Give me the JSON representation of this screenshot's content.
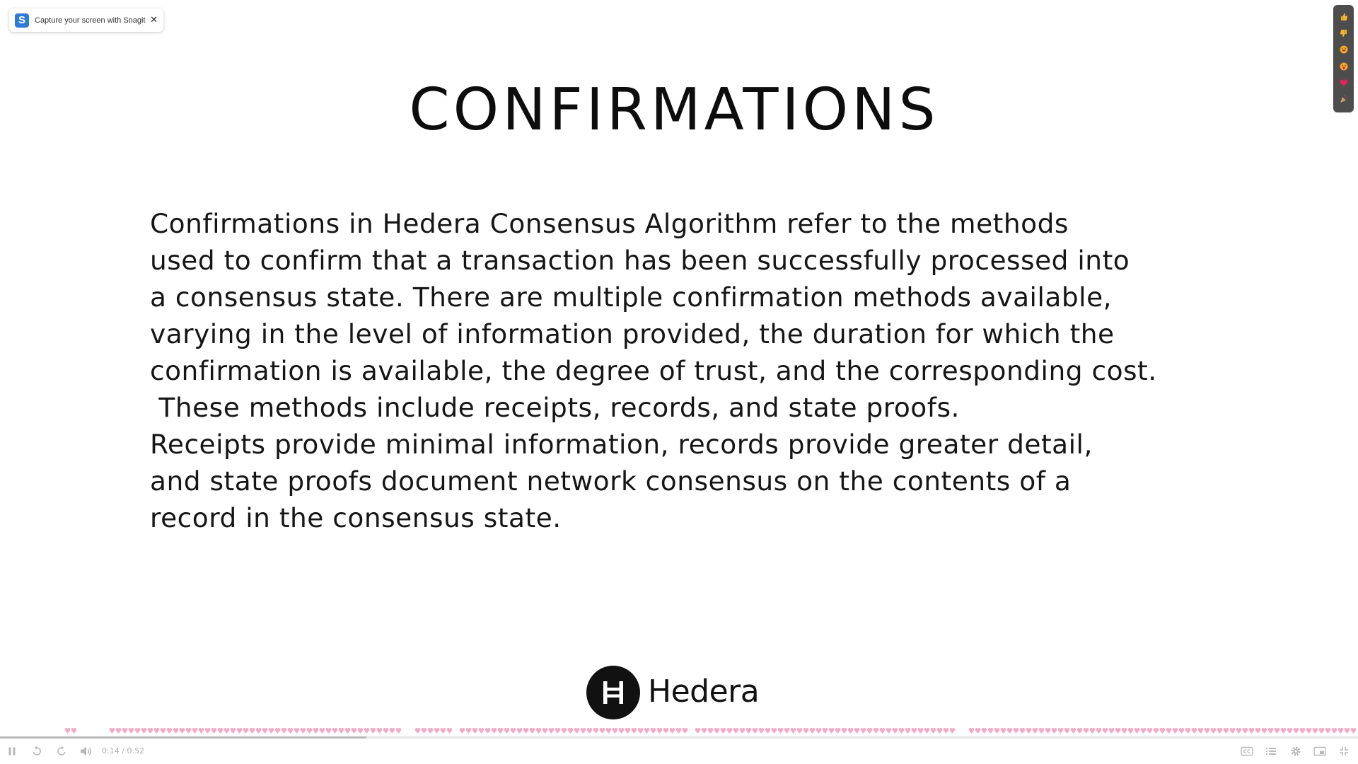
{
  "toast": {
    "logo_letter": "S",
    "message": "Capture your screen with Snagit",
    "close_glyph": "✕"
  },
  "reactions": [
    {
      "icon": "thumbs-up-icon",
      "color": "#f5b72a"
    },
    {
      "icon": "thumbs-down-icon",
      "color": "#f5b72a"
    },
    {
      "icon": "laughing-face-icon",
      "color": "#f5a623"
    },
    {
      "icon": "surprised-face-icon",
      "color": "#f5a623"
    },
    {
      "icon": "heart-icon",
      "color": "#e0245e"
    },
    {
      "icon": "party-popper-icon",
      "color": "#c79c6a"
    }
  ],
  "slide": {
    "title": "CONFIRMATIONS",
    "body_lines": [
      "Confirmations in Hedera Consensus Algorithm refer to the methods",
      "used to confirm that a transaction has been successfully processed into",
      "a consensus state. There are multiple confirmation methods available,",
      "varying in the level of information provided, the duration for which the",
      "confirmation is available, the degree of trust, and the corresponding cost.",
      " These methods include receipts, records, and state proofs.",
      "Receipts provide minimal information, records provide greater detail,",
      "and state proofs document network consensus on the contents of a",
      "record in the consensus state."
    ],
    "brand_name": "Hedera",
    "brand_tm": "™"
  },
  "player": {
    "time": "0:14 / 0:52",
    "progress_fraction": 0.27,
    "colors": {
      "heat": "#f4a9c4",
      "progress_fill": "#b9b9b9"
    }
  }
}
